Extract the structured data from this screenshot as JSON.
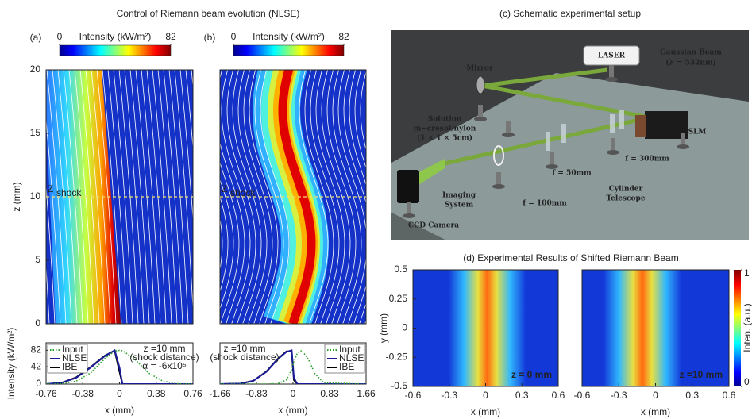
{
  "chart_data": [
    {
      "type": "heatmap",
      "suptitle": "Control of Riemann beam evolution (NLSE)",
      "panel": "(a)",
      "colorbar_label": "Intensity (kW/m²)",
      "clim": [
        0,
        82
      ],
      "cticks": [
        0,
        82
      ],
      "ylabel": "z (mm)",
      "ylim": [
        0,
        20
      ],
      "yticks": [
        0,
        5,
        10,
        15,
        20
      ],
      "shock_z": 10,
      "shock_label": "Z",
      "shock_sub": "shock"
    },
    {
      "type": "line",
      "ylabel": "Intensity (kW/m²)",
      "xlabel": "x (mm)",
      "xlim": [
        -0.76,
        0.76
      ],
      "xticks": [
        -0.76,
        -0.38,
        0,
        0.38,
        0.76
      ],
      "ylim": [
        0,
        100
      ],
      "yticks": [
        0,
        42,
        82
      ],
      "legend": "upper left",
      "x": [
        -0.76,
        -0.6,
        -0.45,
        -0.3,
        -0.15,
        -0.05,
        0,
        0.03,
        0.15,
        0.3,
        0.45,
        0.6,
        0.76
      ],
      "series": [
        {
          "name": "Input",
          "color": "#2ca02c",
          "style": "dotted",
          "values": [
            0,
            1,
            7,
            27,
            62,
            80,
            82,
            81,
            62,
            27,
            7,
            1,
            0
          ]
        },
        {
          "name": "NLSE",
          "color": "#1a1a9a",
          "style": "solid",
          "values": [
            0,
            3,
            15,
            40,
            68,
            82,
            40,
            0,
            0,
            0,
            0,
            0,
            0
          ]
        },
        {
          "name": "IBE",
          "color": "#000000",
          "style": "solid",
          "values": [
            0,
            3,
            16,
            41,
            69,
            81,
            30,
            0,
            0,
            0,
            0,
            0,
            0
          ]
        }
      ],
      "annotations": [
        "z =10 mm",
        "(shock distance)",
        "α = -6x10⁵"
      ]
    },
    {
      "type": "heatmap",
      "panel": "(b)",
      "colorbar_label": "Intensity (kW/m²)",
      "clim": [
        0,
        82
      ],
      "cticks": [
        0,
        82
      ],
      "ylim": [
        0,
        20
      ],
      "shock_z": 10,
      "shock_label": "Z",
      "shock_sub": "shock"
    },
    {
      "type": "line",
      "xlabel": "x (mm)",
      "xlim": [
        -1.66,
        1.66
      ],
      "xticks": [
        -1.66,
        -0.83,
        0,
        0.83,
        1.66
      ],
      "ylim": [
        0,
        100
      ],
      "legend": "upper right",
      "x": [
        -1.66,
        -1.2,
        -0.9,
        -0.6,
        -0.35,
        -0.15,
        -0.03,
        0.02,
        0.1,
        0.2,
        0.35,
        0.5,
        0.7,
        1.66
      ],
      "series": [
        {
          "name": "Input",
          "color": "#2ca02c",
          "style": "dotted",
          "values": [
            0,
            0,
            0,
            0,
            1,
            10,
            35,
            55,
            75,
            82,
            60,
            25,
            3,
            0
          ]
        },
        {
          "name": "NLSE",
          "color": "#1a1a9a",
          "style": "solid",
          "values": [
            0,
            1,
            8,
            30,
            60,
            78,
            82,
            15,
            0,
            0,
            0,
            0,
            0,
            0
          ]
        },
        {
          "name": "IBE",
          "color": "#000000",
          "style": "solid",
          "values": [
            0,
            1,
            8,
            31,
            61,
            79,
            80,
            10,
            0,
            0,
            0,
            0,
            0,
            0
          ]
        }
      ],
      "annotations": [
        "z =10 mm",
        "(shock distance)"
      ]
    },
    {
      "type": "diagram",
      "title": "(c) Schematic experimental setup",
      "labels": [
        "LASER",
        "Gaussian Beam",
        "(λ = 532nm)",
        "Mirror",
        "SLM",
        "Solution",
        "m−cresol/nylon",
        "(1 × 1 × 5cm)",
        "f = 50mm",
        "f = 300mm",
        "Imaging",
        "System",
        "f = 100mm",
        "Cylinder",
        "Telescope",
        "CCD Camera"
      ]
    },
    {
      "type": "heatmap",
      "suptitle": "(d) Experimental Results of Shifted Riemann Beam",
      "xlabel": "x (mm)",
      "ylabel": "y (mm)",
      "xlim": [
        -0.6,
        0.6
      ],
      "xticks": [
        -0.6,
        -0.3,
        0,
        0.3,
        0.6
      ],
      "ylim": [
        -0.5,
        0.5
      ],
      "yticks": [
        -0.5,
        -0.25,
        0,
        0.25,
        0.5
      ],
      "annotation": "z = 0 mm"
    },
    {
      "type": "heatmap",
      "xlabel": "x (mm)",
      "xlim": [
        -0.6,
        0.6
      ],
      "xticks": [
        -0.6,
        -0.3,
        0,
        0.3,
        0.6
      ],
      "ylim": [
        -0.5,
        0.5
      ],
      "annotation": "z =10 mm",
      "colorbar_label": "Inten. (a.u.)",
      "clim": [
        0,
        1
      ],
      "cticks": [
        0,
        1
      ]
    }
  ]
}
